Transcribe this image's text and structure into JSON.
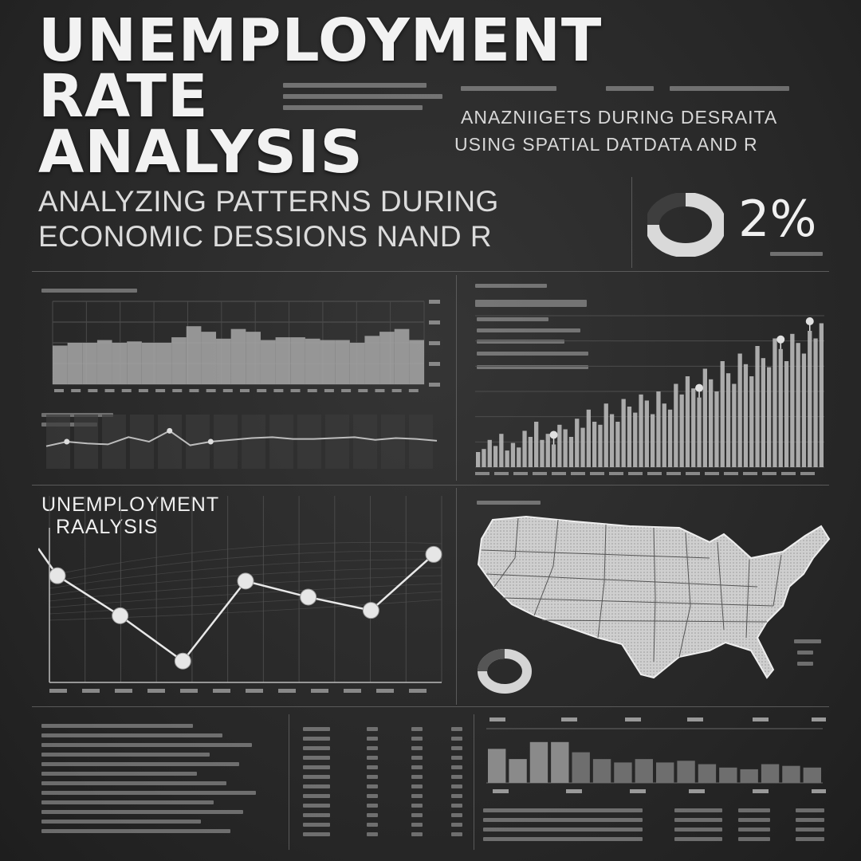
{
  "header": {
    "title_lines": [
      "UNEMPLOYMENT",
      "RATE",
      "ANALYSIS"
    ],
    "subtitle_lines": [
      "ANALYZING PATTERNS DURING",
      "ECONOMIC DESSIONS NAND R"
    ],
    "tagline_lines": [
      "ANAZNIIGETS DURING DESRAITA",
      "USING SPATIAL DATDATA AND R"
    ]
  },
  "kpi": {
    "value_label": "2%",
    "donut_fraction": 0.75
  },
  "line_panel": {
    "title_lines": [
      "UNEMPLOYMENT",
      "RAALYSIS"
    ]
  },
  "colors": {
    "background": "#2a2a2a",
    "ink": "#e6e6e6",
    "bar": "#b8b8b8",
    "grid": "#5a5a5a"
  },
  "icons": [
    "donut-icon",
    "us-map-icon"
  ],
  "chart_data": [
    {
      "type": "area",
      "values": [
        28,
        30,
        30,
        32,
        30,
        31,
        30,
        30,
        34,
        42,
        38,
        33,
        40,
        38,
        32,
        34,
        34,
        33,
        32,
        32,
        30,
        35,
        38,
        40,
        32
      ],
      "ylim": [
        0,
        60
      ],
      "grid": true
    },
    {
      "type": "line",
      "values": [
        25,
        30,
        28,
        27,
        35,
        30,
        42,
        26,
        30,
        32,
        34,
        35,
        33,
        33,
        34,
        35,
        32,
        34,
        33,
        31
      ],
      "ylim": [
        0,
        60
      ],
      "grid": false
    },
    {
      "type": "bar",
      "values": [
        10,
        12,
        18,
        14,
        22,
        11,
        16,
        13,
        24,
        20,
        30,
        18,
        22,
        15,
        28,
        25,
        20,
        32,
        26,
        38,
        30,
        28,
        42,
        35,
        30,
        45,
        40,
        36,
        48,
        44,
        35,
        50,
        42,
        38,
        55,
        48,
        60,
        52,
        46,
        65,
        58,
        50,
        70,
        62,
        55,
        75,
        68,
        60,
        80,
        72,
        66,
        85,
        78,
        70,
        88,
        82,
        75,
        90,
        85,
        95
      ],
      "highlights": [
        13,
        38,
        52,
        57
      ],
      "ylim": [
        0,
        100
      ],
      "grid": true
    },
    {
      "type": "line",
      "x": [
        1,
        2,
        3,
        4,
        5,
        6,
        7
      ],
      "values": [
        50,
        35,
        18,
        48,
        42,
        37,
        58
      ],
      "ylim": [
        10,
        65
      ],
      "grid": true
    },
    {
      "type": "bar",
      "values": [
        20,
        14,
        24,
        24,
        18,
        14,
        12,
        14,
        12,
        13,
        11,
        9,
        8,
        11,
        10,
        9
      ],
      "ylim": [
        0,
        30
      ],
      "grid": false
    }
  ]
}
